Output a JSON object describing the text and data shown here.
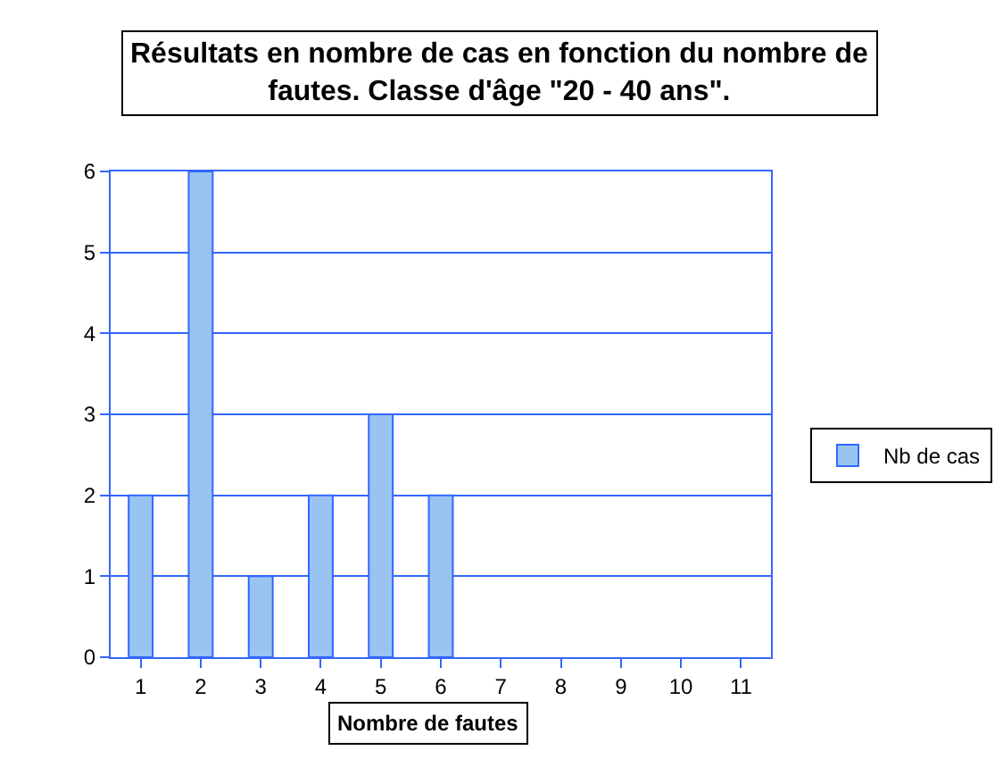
{
  "chart_data": {
    "type": "bar",
    "title": "Résultats en nombre de cas en fonction du nombre de fautes. Classe d'âge \"20 - 40 ans\".",
    "xlabel": "Nombre de fautes",
    "categories": [
      "1",
      "2",
      "3",
      "4",
      "5",
      "6",
      "7",
      "8",
      "9",
      "10",
      "11"
    ],
    "series": [
      {
        "name": "Nb de cas",
        "color": "#99c4f2",
        "values": [
          2,
          6,
          1,
          2,
          3,
          2,
          0,
          0,
          0,
          0,
          0
        ]
      }
    ],
    "ylim": [
      0,
      6
    ],
    "yticks": [
      0,
      1,
      2,
      3,
      4,
      5,
      6
    ],
    "grid": "y",
    "legend": "right"
  }
}
